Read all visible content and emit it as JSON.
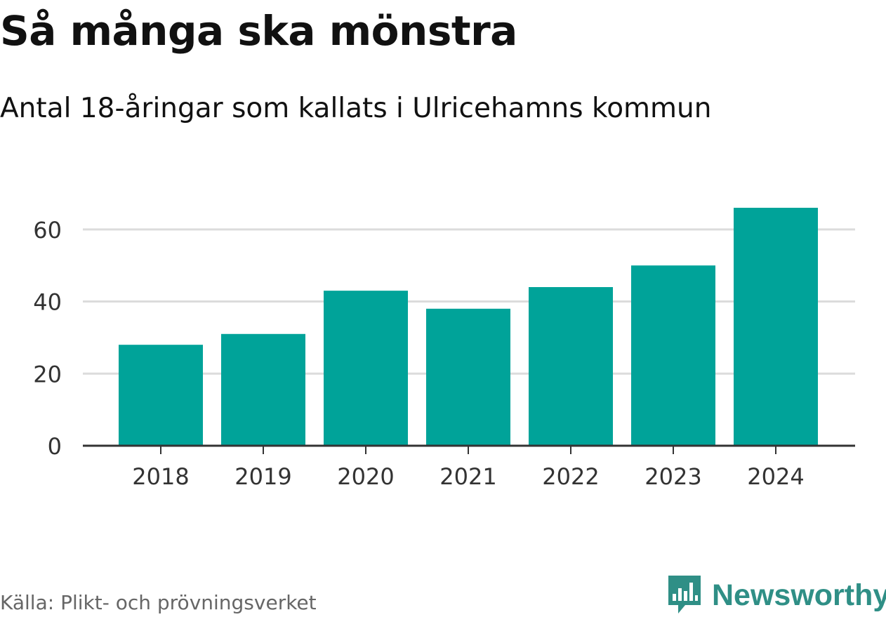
{
  "title": "Så många ska mönstra",
  "subtitle": "Antal 18-åringar som kallats i Ulricehamns kommun",
  "source": "Källa: Plikt- och prövningsverket",
  "brand": {
    "name": "Newsworthy",
    "icon": "newsworthy-logo-icon",
    "color": "#2f8f86"
  },
  "colors": {
    "bar": "#00a399",
    "grid": "#dcdcdc",
    "axis": "#333333",
    "tick_text": "#333333"
  },
  "chart_data": {
    "type": "bar",
    "title": "Så många ska mönstra",
    "subtitle": "Antal 18-åringar som kallats i Ulricehamns kommun",
    "xlabel": "",
    "ylabel": "",
    "categories": [
      "2018",
      "2019",
      "2020",
      "2021",
      "2022",
      "2023",
      "2024"
    ],
    "values": [
      28,
      31,
      43,
      38,
      44,
      50,
      66
    ],
    "ylim": [
      0,
      66
    ],
    "yticks": [
      0,
      20,
      40,
      60
    ],
    "grid": true,
    "legend": "none"
  }
}
